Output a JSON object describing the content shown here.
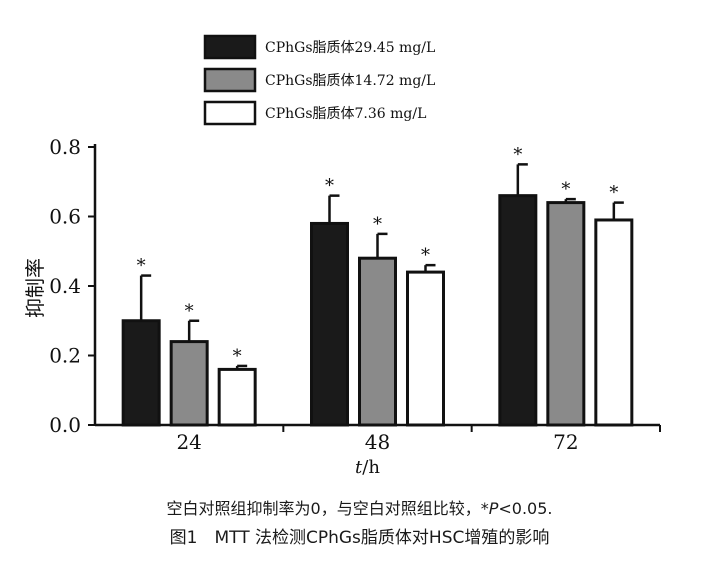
{
  "chart_data": {
    "type": "bar",
    "categories": [
      "24",
      "48",
      "72"
    ],
    "xlabel_italic": "t",
    "xlabel_rest": "/h",
    "ylabel": "抑制率",
    "ylim": [
      0,
      0.8
    ],
    "yticks": [
      "0.0",
      "0.2",
      "0.4",
      "0.6",
      "0.8"
    ],
    "legend_position": "top-left",
    "series": [
      {
        "name": "CPhGs脂质体29.45 mg/L",
        "fill": "#1a1a1a",
        "values": [
          0.3,
          0.58,
          0.66
        ],
        "errors": [
          0.13,
          0.08,
          0.09
        ],
        "sig": [
          "*",
          "*",
          "*"
        ]
      },
      {
        "name": "CPhGs脂质体14.72 mg/L",
        "fill": "#8a8a8a",
        "values": [
          0.24,
          0.48,
          0.64
        ],
        "errors": [
          0.06,
          0.07,
          0.01
        ],
        "sig": [
          "*",
          "*",
          "*"
        ]
      },
      {
        "name": "CPhGs脂质体7.36 mg/L",
        "fill": "#ffffff",
        "values": [
          0.16,
          0.44,
          0.59
        ],
        "errors": [
          0.01,
          0.02,
          0.05
        ],
        "sig": [
          "*",
          "*",
          "*"
        ]
      }
    ]
  },
  "caption": {
    "note_before": "空白对照组抑制率为0，与空白对照组比较，*",
    "note_italic": "P",
    "note_after": "<0.05.",
    "figure_title": "图1　MTT 法检测CPhGs脂质体对HSC增殖的影响"
  }
}
